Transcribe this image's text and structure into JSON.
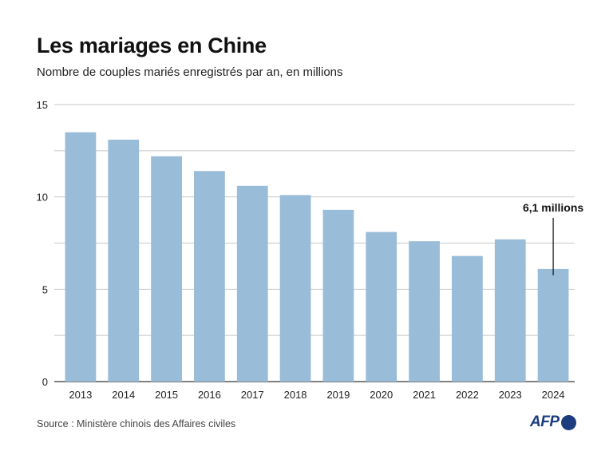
{
  "chart_data": {
    "type": "bar",
    "title": "Les mariages en Chine",
    "subtitle": "Nombre de couples mariés enregistrés par an, en millions",
    "categories": [
      "2013",
      "2014",
      "2015",
      "2016",
      "2017",
      "2018",
      "2019",
      "2020",
      "2021",
      "2022",
      "2023",
      "2024"
    ],
    "values": [
      13.5,
      13.1,
      12.2,
      11.4,
      10.6,
      10.1,
      9.3,
      8.1,
      7.6,
      6.8,
      7.7,
      6.1
    ],
    "ylim": [
      0,
      15
    ],
    "yticks": [
      0,
      5,
      10,
      15
    ],
    "grid": true,
    "bar_color": "#99bcd9",
    "annotation": {
      "category": "2024",
      "text": "6,1 millions"
    }
  },
  "source": "Source : Ministère chinois des Affaires civiles",
  "logo": {
    "text": "AFP",
    "color": "#1d3c7d"
  }
}
